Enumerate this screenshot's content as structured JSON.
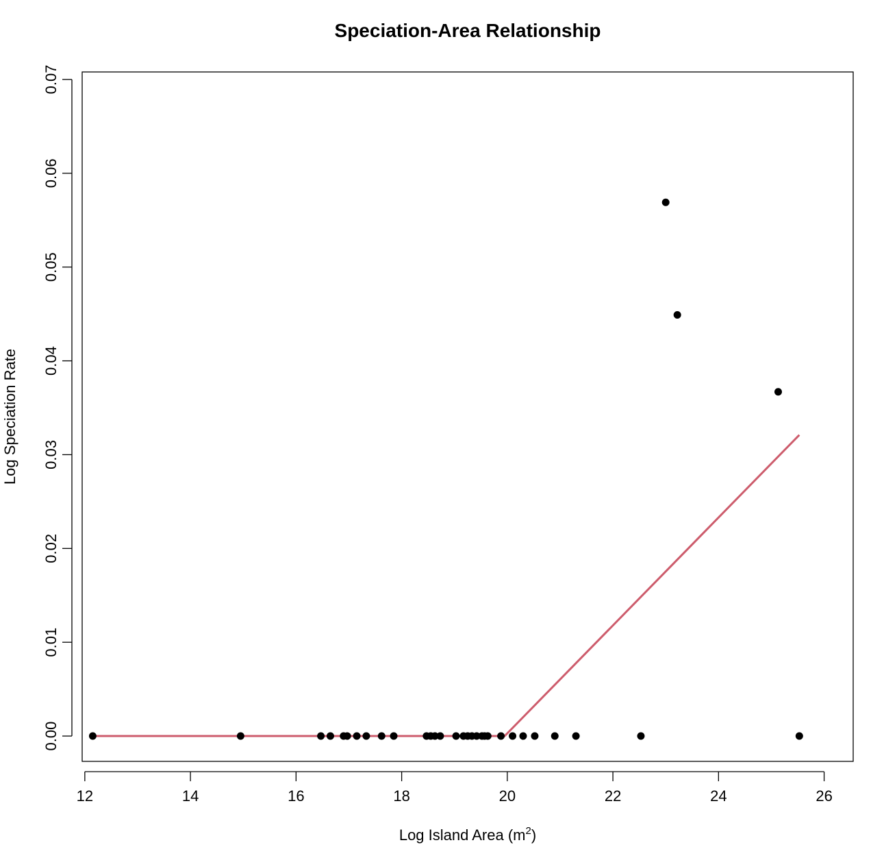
{
  "chart_data": {
    "type": "scatter",
    "title": "Speciation-Area Relationship",
    "xlabel": "Log Island Area (m",
    "xlabel_superscript": "2",
    "xlabel_suffix": ")",
    "ylabel": "Log Speciation Rate",
    "xlim": [
      11.95,
      26.55
    ],
    "ylim": [
      -0.0027,
      0.0708
    ],
    "xticks": [
      12,
      14,
      16,
      18,
      20,
      22,
      24,
      26
    ],
    "xtick_labels": [
      "12",
      "14",
      "16",
      "18",
      "20",
      "22",
      "24",
      "26"
    ],
    "yticks": [
      0.0,
      0.01,
      0.02,
      0.03,
      0.04,
      0.05,
      0.06,
      0.07
    ],
    "ytick_labels": [
      "0.00",
      "0.01",
      "0.02",
      "0.03",
      "0.04",
      "0.05",
      "0.06",
      "0.07"
    ],
    "grid": false,
    "point_color": "#000000",
    "line_color": "#cd5c6c",
    "points": [
      {
        "x": 12.15,
        "y": 0
      },
      {
        "x": 14.95,
        "y": 0
      },
      {
        "x": 16.47,
        "y": 0
      },
      {
        "x": 16.65,
        "y": 0
      },
      {
        "x": 16.9,
        "y": 0
      },
      {
        "x": 16.97,
        "y": 0
      },
      {
        "x": 17.15,
        "y": 0
      },
      {
        "x": 17.33,
        "y": 0
      },
      {
        "x": 17.62,
        "y": 0
      },
      {
        "x": 17.85,
        "y": 0
      },
      {
        "x": 18.47,
        "y": 0
      },
      {
        "x": 18.55,
        "y": 0
      },
      {
        "x": 18.63,
        "y": 0
      },
      {
        "x": 18.73,
        "y": 0
      },
      {
        "x": 19.03,
        "y": 0
      },
      {
        "x": 19.17,
        "y": 0
      },
      {
        "x": 19.25,
        "y": 0
      },
      {
        "x": 19.33,
        "y": 0
      },
      {
        "x": 19.42,
        "y": 0
      },
      {
        "x": 19.52,
        "y": 0
      },
      {
        "x": 19.57,
        "y": 0
      },
      {
        "x": 19.63,
        "y": 0
      },
      {
        "x": 19.88,
        "y": 0
      },
      {
        "x": 20.1,
        "y": 0
      },
      {
        "x": 20.3,
        "y": 0
      },
      {
        "x": 20.52,
        "y": 0
      },
      {
        "x": 20.9,
        "y": 0
      },
      {
        "x": 21.3,
        "y": 0
      },
      {
        "x": 22.53,
        "y": 0
      },
      {
        "x": 23.0,
        "y": 0.0569
      },
      {
        "x": 23.22,
        "y": 0.0449
      },
      {
        "x": 25.13,
        "y": 0.0367
      },
      {
        "x": 25.53,
        "y": 0
      }
    ],
    "fit_line": [
      {
        "x": 12.15,
        "y": 0
      },
      {
        "x": 19.95,
        "y": 0
      },
      {
        "x": 25.53,
        "y": 0.0321
      }
    ]
  }
}
